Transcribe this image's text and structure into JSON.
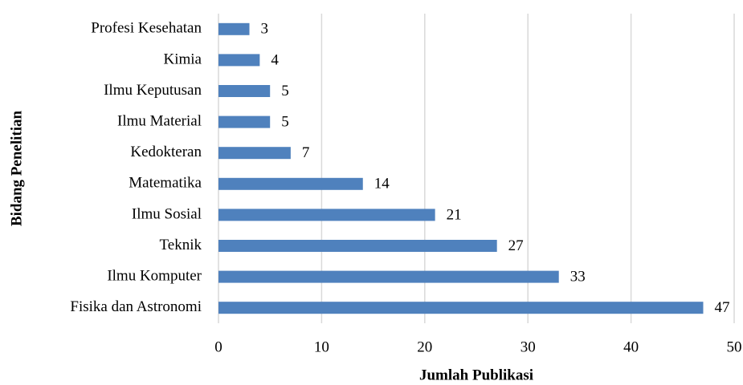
{
  "chart_data": {
    "type": "hbar",
    "xlabel": "Jumlah Publikasi",
    "ylabel": "Bidang Penelitian",
    "categories": [
      "Profesi Kesehatan",
      "Kimia",
      "Ilmu Keputusan",
      "Ilmu Material",
      "Kedokteran",
      "Matematika",
      "Ilmu Sosial",
      "Teknik",
      "Ilmu Komputer",
      "Fisika dan Astronomi"
    ],
    "values": [
      3,
      4,
      5,
      5,
      7,
      14,
      21,
      27,
      33,
      47
    ],
    "color": "#4f81bd",
    "xlim": [
      0,
      50
    ],
    "xticks": [
      0,
      10,
      20,
      30,
      40,
      50
    ],
    "grid": true
  }
}
